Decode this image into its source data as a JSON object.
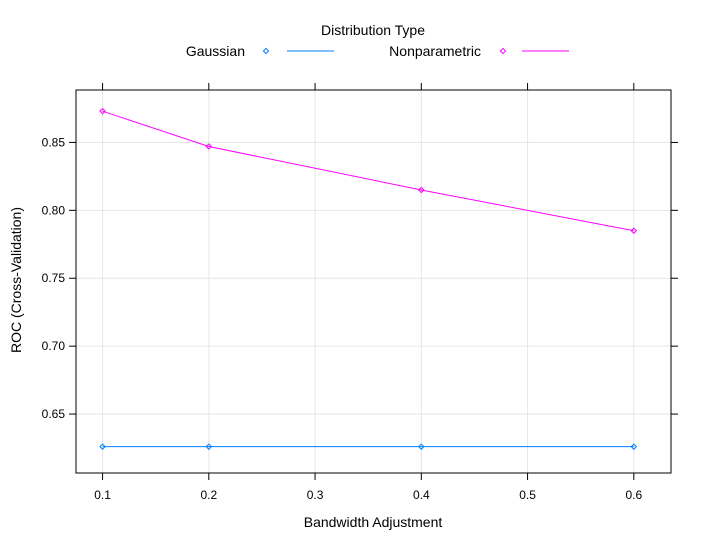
{
  "chart_data": {
    "type": "line",
    "legend": {
      "title": "Distribution Type",
      "placement": "top"
    },
    "xlabel": "Bandwidth Adjustment",
    "ylabel": "ROC (Cross-Validation)",
    "xlim": [
      0.075,
      0.635
    ],
    "ylim": [
      0.6066,
      0.8886
    ],
    "x_ticks": [
      0.1,
      0.2,
      0.3,
      0.4,
      0.5,
      0.6
    ],
    "x_tick_labels": [
      "0.1",
      "0.2",
      "0.3",
      "0.4",
      "0.5",
      "0.6"
    ],
    "y_ticks": [
      0.65,
      0.7,
      0.75,
      0.8,
      0.85
    ],
    "y_tick_labels": [
      "0.65",
      "0.70",
      "0.75",
      "0.80",
      "0.85"
    ],
    "grid": true,
    "series": [
      {
        "name": "Gaussian",
        "color": "#0080ff",
        "x": [
          0.1,
          0.2,
          0.4,
          0.6
        ],
        "values": [
          0.626,
          0.626,
          0.626,
          0.626
        ]
      },
      {
        "name": "Nonparametric",
        "color": "#ff00ff",
        "x": [
          0.1,
          0.2,
          0.4,
          0.6
        ],
        "values": [
          0.873,
          0.847,
          0.815,
          0.785
        ]
      }
    ]
  }
}
